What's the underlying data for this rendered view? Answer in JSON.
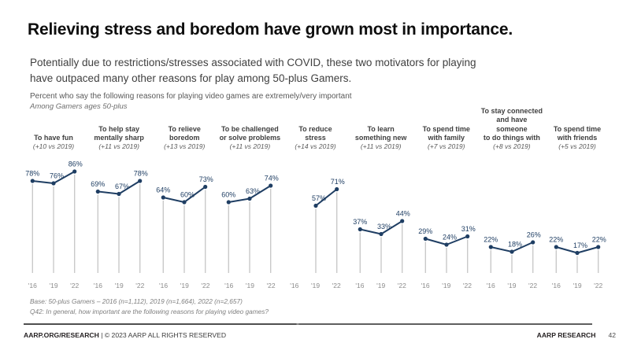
{
  "title": "Relieving stress and boredom have grown most in importance.",
  "subtitle": "Potentially due to restrictions/stresses associated with COVID, these two motivators for playing\nhave outpaced many other reasons for play among 50-plus Gamers.",
  "descriptor": "Percent who say the following reasons for playing video games are extremely/very important",
  "sub_descriptor": "Among Gamers ages 50-plus",
  "colors": {
    "accent_navy": "#1f3e63",
    "stem_gray": "#c9c9c9",
    "tick_gray": "#8c8c8c",
    "header_gray": "#3f3f3f"
  },
  "chart_data": {
    "type": "line",
    "title": "Percent who say the following reasons for playing video games are extremely/very important",
    "x": [
      "'16",
      "'19",
      "'22"
    ],
    "ylim": [
      0,
      100
    ],
    "value_suffix": "%",
    "grid": false,
    "groups": [
      {
        "label": "To have fun",
        "change": "(+10 vs 2019)",
        "values": [
          78,
          76,
          86
        ]
      },
      {
        "label": "To help stay\nmentally sharp",
        "change": "(+11 vs 2019)",
        "values": [
          69,
          67,
          78
        ]
      },
      {
        "label": "To relieve\nboredom",
        "change": "(+13 vs 2019)",
        "values": [
          64,
          60,
          73
        ]
      },
      {
        "label": "To be challenged\nor solve problems",
        "change": "(+11 vs 2019)",
        "values": [
          60,
          63,
          74
        ]
      },
      {
        "label": "To reduce\nstress",
        "change": "(+14 vs 2019)",
        "values": [
          null,
          57,
          71
        ]
      },
      {
        "label": "To learn\nsomething new",
        "change": "(+11 vs 2019)",
        "values": [
          37,
          33,
          44
        ]
      },
      {
        "label": "To spend time\nwith family",
        "change": "(+7 vs 2019)",
        "values": [
          29,
          24,
          31
        ]
      },
      {
        "label": "To stay connected\nand have someone\nto do things with",
        "change": "(+8 vs 2019)",
        "values": [
          22,
          18,
          26
        ]
      },
      {
        "label": "To spend time\nwith friends",
        "change": "(+5 vs 2019)",
        "values": [
          22,
          17,
          22
        ]
      }
    ]
  },
  "footnotes": {
    "base": "Base: 50-plus Gamers – 2016 (n=1,112), 2019 (n=1,664), 2022 (n=2,657)",
    "question": "Q42: In general, how important are the following reasons for playing video games?"
  },
  "footer": {
    "left_bold": "AARP.ORG/RESEARCH",
    "left_rest": "| © 2023 AARP ALL RIGHTS RESERVED",
    "right_label": "AARP RESEARCH",
    "page_number": "42"
  }
}
